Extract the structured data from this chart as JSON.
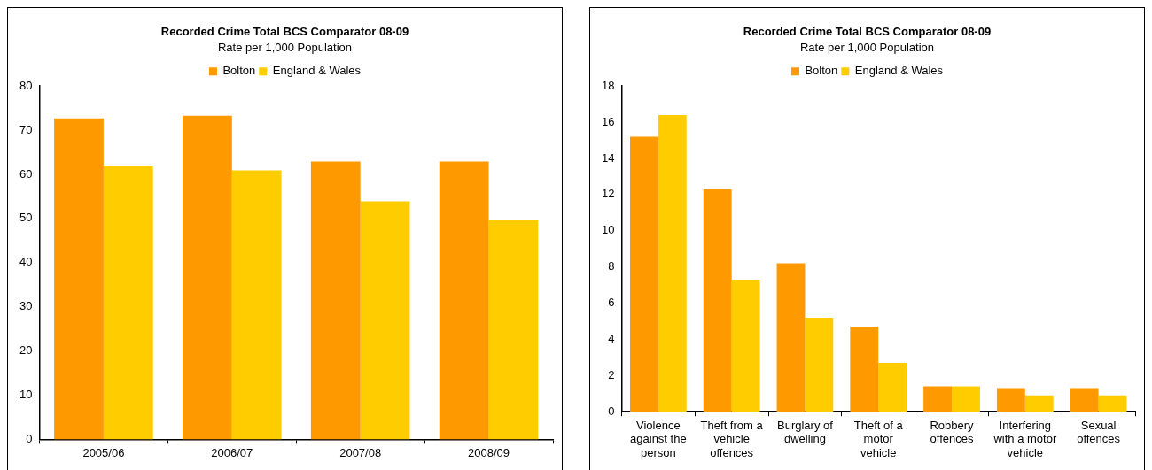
{
  "chart_data": [
    {
      "type": "bar",
      "title": "Recorded Crime Total BCS Comparator 08-09",
      "subtitle": "Rate per 1,000 Population",
      "categories": [
        "2005/06",
        "2006/07",
        "2007/08",
        "2008/09"
      ],
      "series": [
        {
          "name": "Bolton",
          "color": "#ff9900",
          "values": [
            72.7,
            73.3,
            62.9,
            62.9
          ]
        },
        {
          "name": "England & Wales",
          "color": "#ffcc00",
          "values": [
            62,
            60.9,
            53.9,
            49.7
          ]
        }
      ],
      "ylim": [
        0,
        80
      ],
      "yticks": [
        0,
        10,
        20,
        30,
        40,
        50,
        60,
        70,
        80
      ],
      "grid": false,
      "legend": "top"
    },
    {
      "type": "bar",
      "title": "Recorded Crime Total BCS Comparator 08-09",
      "subtitle": "Rate per 1,000 Population",
      "categories": [
        "Violence against the person",
        "Theft from a vehicle offences",
        "Burglary of dwelling",
        "Theft of a motor vehicle",
        "Robbery offences",
        "Interfering with a motor vehicle",
        "Sexual offences"
      ],
      "series": [
        {
          "name": "Bolton",
          "color": "#ff9900",
          "values": [
            15.2,
            12.3,
            8.2,
            4.7,
            1.4,
            1.3,
            1.3
          ]
        },
        {
          "name": "England & Wales",
          "color": "#ffcc00",
          "values": [
            16.4,
            7.3,
            5.2,
            2.7,
            1.4,
            0.9,
            0.9
          ]
        }
      ],
      "ylim": [
        0,
        18
      ],
      "yticks": [
        0,
        2,
        4,
        6,
        8,
        10,
        12,
        14,
        16,
        18
      ],
      "grid": false,
      "legend": "top"
    }
  ]
}
